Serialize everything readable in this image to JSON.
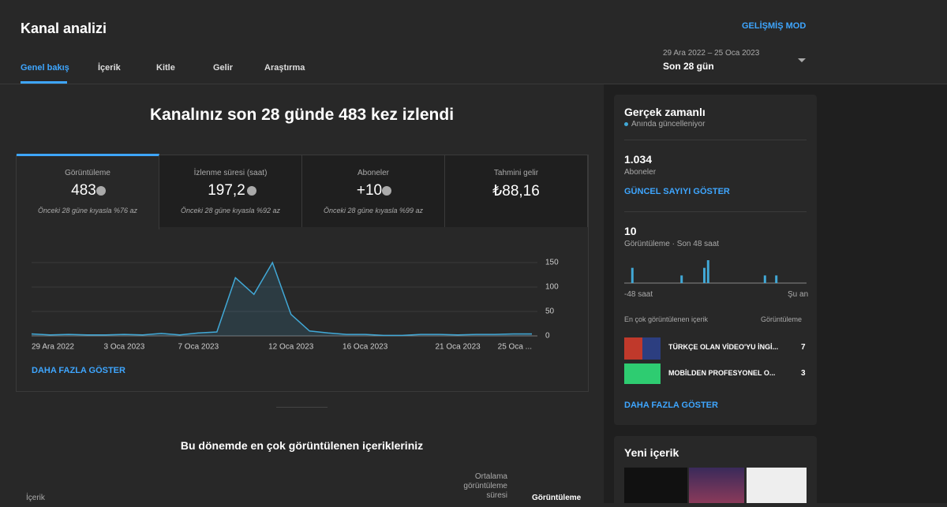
{
  "header": {
    "title": "Kanal analizi",
    "advanced": "GELİŞMİŞ MOD",
    "tabs": [
      "Genel bakış",
      "İçerik",
      "Kitle",
      "Gelir",
      "Araştırma"
    ],
    "date_range": "29 Ara 2022 – 25 Oca 2023",
    "period": "Son 28 gün"
  },
  "headline": "Kanalınız son 28 günde 483 kez izlendi",
  "metrics": [
    {
      "label": "Görüntüleme",
      "value": "483",
      "comparison": "Önceki 28 güne kıyasla %76 az"
    },
    {
      "label": "İzlenme süresi (saat)",
      "value": "197,2",
      "comparison": "Önceki 28 güne kıyasla %92 az"
    },
    {
      "label": "Aboneler",
      "value": "+10",
      "comparison": "Önceki 28 güne kıyasla %99 az"
    },
    {
      "label": "Tahmini gelir",
      "value": "₺88,16"
    }
  ],
  "chart_data": {
    "type": "area",
    "categories": [
      "29 Ara 2022",
      null,
      null,
      null,
      null,
      "3 Oca 2023",
      null,
      null,
      null,
      "7 Oca 2023",
      null,
      null,
      null,
      null,
      "12 Oca 2023",
      null,
      null,
      null,
      "16 Oca 2023",
      null,
      null,
      null,
      null,
      "21 Oca 2023",
      null,
      null,
      null,
      "25 Oca ..."
    ],
    "values": [
      4,
      2,
      3,
      2,
      2,
      3,
      2,
      5,
      2,
      6,
      8,
      119,
      85,
      150,
      44,
      10,
      6,
      3,
      3,
      1,
      1,
      3,
      3,
      2,
      3,
      3,
      4,
      4
    ],
    "color": "#41a8d6",
    "ylim": [
      0,
      150
    ],
    "yticks": [
      0,
      50,
      100,
      150
    ],
    "grid": true
  },
  "show_more": "DAHA FAZLA GÖSTER",
  "top_content": {
    "title": "Bu dönemde en çok görüntülenen içerikleriniz",
    "col_content": "İçerik",
    "col_avg": "Ortalama görüntüleme süresi",
    "col_views": "Görüntüleme"
  },
  "realtime": {
    "title": "Gerçek zamanlı",
    "subtitle": "Anında güncelleniyor",
    "subscribers": "1.034",
    "subscribers_label": "Aboneler",
    "show_count": "GÜNCEL SAYIYI GÖSTER",
    "views": "10",
    "views_label": "Görüntüleme · Son 48 saat",
    "chart": {
      "type": "bar",
      "color": "#41a8d6",
      "values": [
        0,
        2,
        0,
        0,
        0,
        0,
        0,
        0,
        0,
        0,
        0,
        0,
        0,
        0,
        1,
        0,
        0,
        0,
        0,
        0,
        2,
        3,
        0,
        0,
        0,
        0,
        0,
        0,
        0,
        0,
        0,
        0,
        0,
        0,
        0,
        0,
        1,
        0,
        0,
        1,
        0,
        0,
        0,
        0,
        0,
        0,
        0,
        0
      ]
    },
    "x_start": "-48 saat",
    "x_end": "Şu an",
    "top_header": "En çok görüntülenen içerik",
    "top_col": "Görüntüleme",
    "items": [
      {
        "title": "TÜRKÇE OLAN VİDEO'YU İNGİ...",
        "views": "7"
      },
      {
        "title": "MOBİLDEN PROFESYONEL O...",
        "views": "3"
      }
    ],
    "show_more": "DAHA FAZLA GÖSTER"
  },
  "new_content": {
    "title": "Yeni içerik"
  }
}
